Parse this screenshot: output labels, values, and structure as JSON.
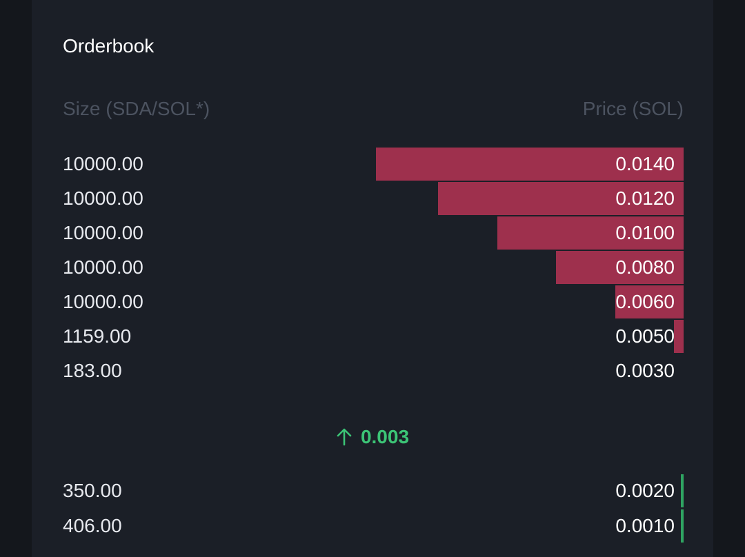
{
  "title": "Orderbook",
  "columns": {
    "size": "Size (SDA/SOL*)",
    "price": "Price (SOL)"
  },
  "asks": [
    {
      "size": "10000.00",
      "price": "0.0140",
      "depth": 1.0
    },
    {
      "size": "10000.00",
      "price": "0.0120",
      "depth": 0.798
    },
    {
      "size": "10000.00",
      "price": "0.0100",
      "depth": 0.606
    },
    {
      "size": "10000.00",
      "price": "0.0080",
      "depth": 0.415
    },
    {
      "size": "10000.00",
      "price": "0.0060",
      "depth": 0.222
    },
    {
      "size": "1159.00",
      "price": "0.0050",
      "depth": 0.031
    },
    {
      "size": "183.00",
      "price": "0.0030",
      "depth": 0.0
    }
  ],
  "mid_price": {
    "value": "0.003",
    "direction": "up",
    "icon": "arrow-up-icon",
    "color": "#3cc476"
  },
  "bids": [
    {
      "size": "350.00",
      "price": "0.0020"
    },
    {
      "size": "406.00",
      "price": "0.0010"
    }
  ],
  "colors": {
    "ask_bar": "#9e304d",
    "bid_bar": "#2fa462",
    "background": "#1b1f27"
  }
}
